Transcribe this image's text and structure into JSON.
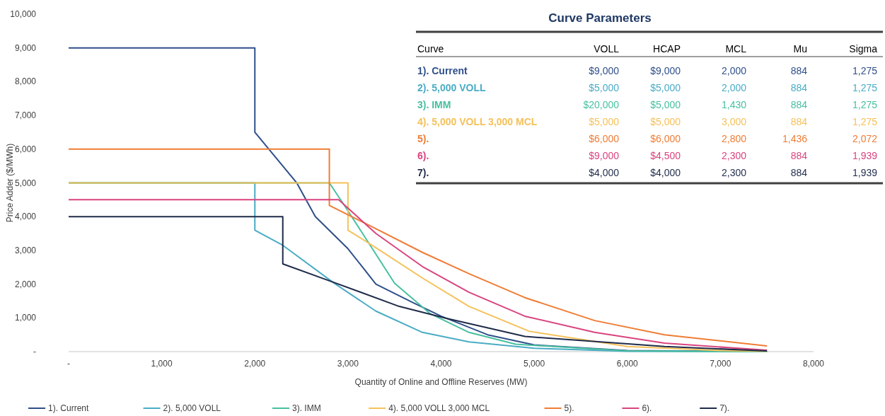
{
  "chart_data": [
    {
      "type": "line",
      "xlabel": "Quantity of Online and Offline Reserves (MW)",
      "ylabel": "Price Adder ($/MWh)",
      "xlim": [
        0,
        8000
      ],
      "ylim": [
        0,
        10000
      ],
      "xticks": [
        {
          "value": 0,
          "label": "-"
        },
        {
          "value": 1000,
          "label": "1,000"
        },
        {
          "value": 2000,
          "label": "2,000"
        },
        {
          "value": 3000,
          "label": "3,000"
        },
        {
          "value": 4000,
          "label": "4,000"
        },
        {
          "value": 5000,
          "label": "5,000"
        },
        {
          "value": 6000,
          "label": "6,000"
        },
        {
          "value": 7000,
          "label": "7,000"
        },
        {
          "value": 8000,
          "label": "8,000"
        }
      ],
      "yticks": [
        {
          "value": 0,
          "label": "-"
        },
        {
          "value": 1000,
          "label": "1,000"
        },
        {
          "value": 2000,
          "label": "2,000"
        },
        {
          "value": 3000,
          "label": "3,000"
        },
        {
          "value": 4000,
          "label": "4,000"
        },
        {
          "value": 5000,
          "label": "5,000"
        },
        {
          "value": 6000,
          "label": "6,000"
        },
        {
          "value": 7000,
          "label": "7,000"
        },
        {
          "value": 8000,
          "label": "8,000"
        },
        {
          "value": 9000,
          "label": "9,000"
        },
        {
          "value": 10000,
          "label": "10,000"
        }
      ],
      "legend": "bottom",
      "line_style": "solid",
      "marker": "none",
      "series": [
        {
          "name": "1). Current",
          "color": "#2f4f8a",
          "x": [
            0,
            2000,
            2000,
            2450,
            2650,
            3000,
            3300,
            3700,
            4000,
            4500,
            5000,
            6000,
            7500
          ],
          "values": [
            9000,
            9000,
            6500,
            5000,
            4000,
            3050,
            2000,
            1450,
            1050,
            500,
            200,
            30,
            0
          ]
        },
        {
          "name": "2). 5,000 VOLL",
          "color": "#4aacc5",
          "x": [
            0,
            2000,
            2000,
            2300,
            2850,
            3300,
            3800,
            4300,
            5000,
            6000,
            7500
          ],
          "values": [
            5000,
            5000,
            3600,
            3150,
            2030,
            1200,
            570,
            290,
            100,
            10,
            0
          ]
        },
        {
          "name": "3). IMM",
          "color": "#47c0a0",
          "x": [
            0,
            2800,
            2960,
            3190,
            3500,
            3880,
            4300,
            4800,
            6000,
            7500
          ],
          "values": [
            5000,
            5000,
            4340,
            3360,
            2030,
            1130,
            570,
            220,
            20,
            0
          ]
        },
        {
          "name": "4). 5,000 VOLL 3,000 MCL",
          "color": "#f5c15a",
          "x": [
            0,
            3000,
            3000,
            3300,
            3800,
            4300,
            4950,
            6000,
            7000,
            7500
          ],
          "values": [
            5000,
            5000,
            3600,
            3080,
            2180,
            1340,
            600,
            150,
            30,
            10
          ]
        },
        {
          "name": "5).",
          "color": "#f07c35",
          "x": [
            0,
            2800,
            2800,
            3200,
            3800,
            4300,
            4900,
            5650,
            6400,
            7500
          ],
          "values": [
            6000,
            6000,
            4330,
            3780,
            2940,
            2310,
            1600,
            920,
            500,
            170
          ]
        },
        {
          "name": "6).",
          "color": "#d9447f",
          "x": [
            0,
            2900,
            3300,
            3800,
            4300,
            4900,
            5650,
            6400,
            7500
          ],
          "values": [
            4500,
            4500,
            3500,
            2520,
            1760,
            1050,
            570,
            250,
            40
          ]
        },
        {
          "name": "7).",
          "color": "#1f2b4a",
          "x": [
            0,
            2300,
            2300,
            2800,
            3550,
            4050,
            4900,
            6400,
            7500
          ],
          "values": [
            4000,
            4000,
            2600,
            2100,
            1340,
            990,
            450,
            150,
            20
          ]
        }
      ]
    },
    {
      "type": "other",
      "title": "Curve Parameters",
      "categories": [
        "Curve",
        "VOLL",
        "HCAP",
        "MCL",
        "Mu",
        "Sigma"
      ],
      "y_categories": [
        "1). Current",
        "2). 5,000 VOLL",
        "3). IMM",
        "4). 5,000 VOLL 3,000 MCL",
        "5).",
        "6).",
        "7)."
      ],
      "colors": [
        "#2f4f8a",
        "#4aacc5",
        "#47c0a0",
        "#f5c15a",
        "#f07c35",
        "#d9447f",
        "#1f2b4a"
      ],
      "cell_labels": [
        [
          "$9,000",
          "$9,000",
          "2,000",
          "884",
          "1,275"
        ],
        [
          "$5,000",
          "$5,000",
          "2,000",
          "884",
          "1,275"
        ],
        [
          "$20,000",
          "$5,000",
          "1,430",
          "884",
          "1,275"
        ],
        [
          "$5,000",
          "$5,000",
          "3,000",
          "884",
          "1,275"
        ],
        [
          "$6,000",
          "$6,000",
          "2,800",
          "1,436",
          "2,072"
        ],
        [
          "$9,000",
          "$4,500",
          "2,300",
          "884",
          "1,939"
        ],
        [
          "$4,000",
          "$4,000",
          "2,300",
          "884",
          "1,939"
        ]
      ]
    }
  ]
}
